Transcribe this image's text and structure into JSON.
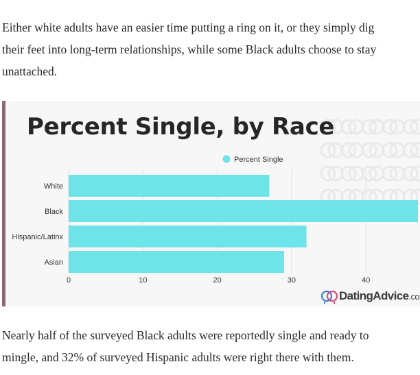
{
  "article": {
    "paragraph_top": [
      "Either white adults have an easier time putting a ring on it, or they simply dig",
      "their feet into long-term relationships, while some Black adults choose to stay",
      "unattached."
    ],
    "paragraph_bottom": [
      "Nearly half of the surveyed Black adults were reportedly single and ready to",
      "mingle, and 32% of surveyed Hispanic adults were right there with them."
    ]
  },
  "brand": {
    "name": "DatingAdvice",
    "suffix": ".com",
    "icon": "interlocked-rings-icon"
  },
  "colors": {
    "bar": "#6ee3e8",
    "accent_border": "#8c6a75",
    "text": "#292929"
  },
  "chart_data": {
    "type": "bar",
    "orientation": "horizontal",
    "title": "Percent Single, by Race",
    "categories": [
      "White",
      "Black",
      "Hispanic/Latinx",
      "Asian"
    ],
    "series": [
      {
        "name": "Percent Single",
        "values": [
          27,
          47,
          32,
          29
        ],
        "color": "#6ee3e8"
      }
    ],
    "xlim": [
      0,
      47
    ],
    "xticks": [
      0,
      10,
      20,
      30,
      40
    ],
    "grid": true,
    "legend_position": "top-center"
  }
}
